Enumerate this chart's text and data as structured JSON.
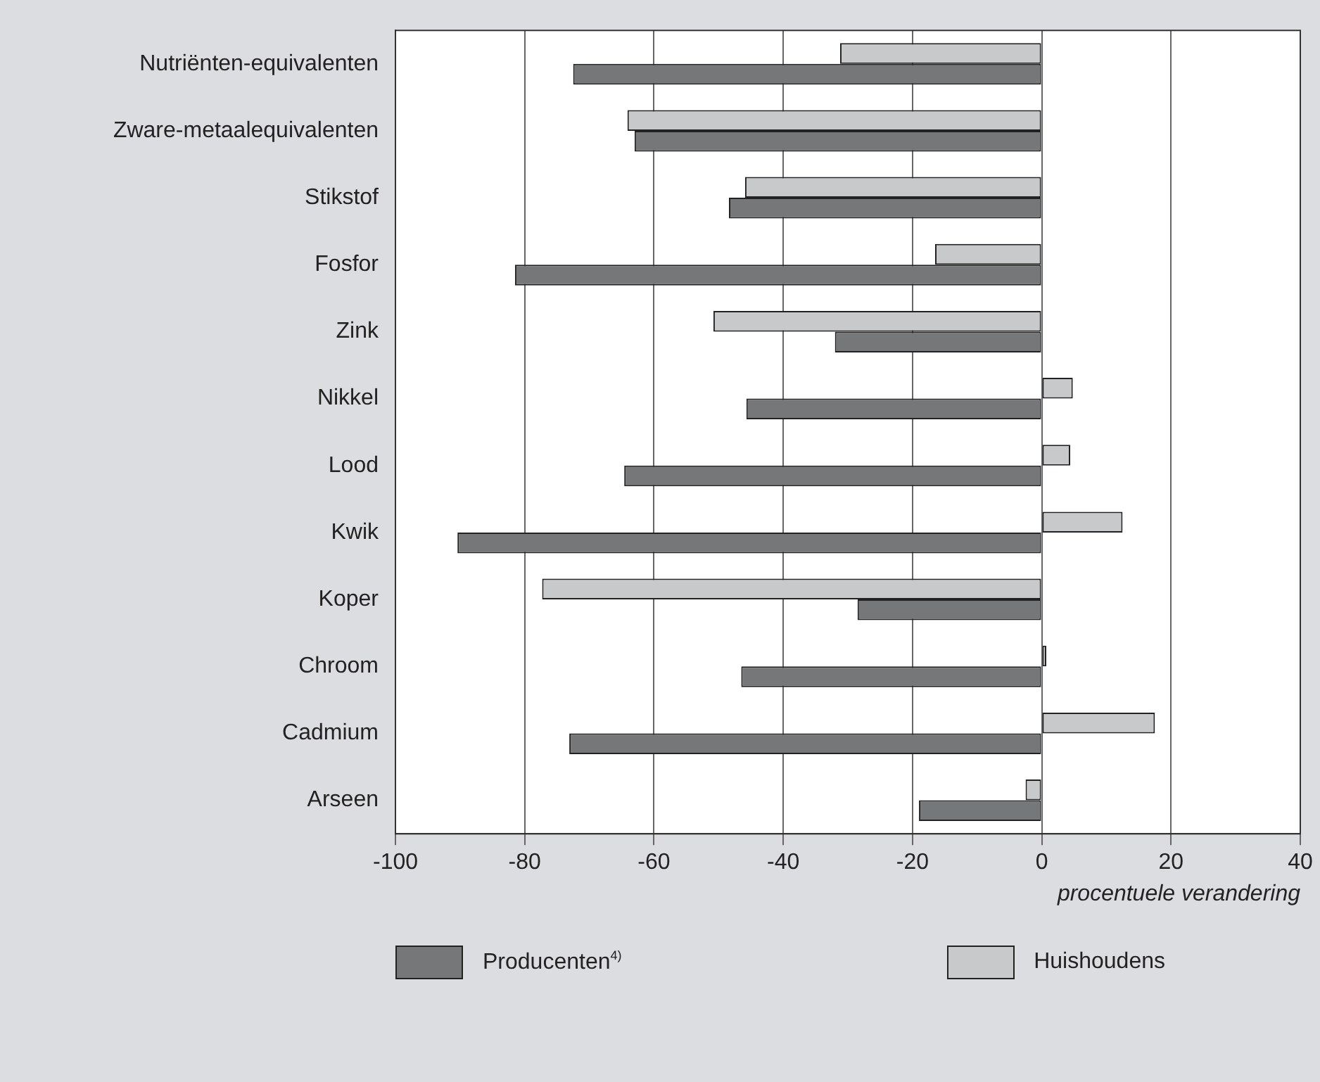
{
  "chart_data": {
    "type": "bar",
    "orientation": "horizontal",
    "xlabel": "procentuele verandering",
    "categories": [
      "Nutriënten-equivalenten",
      "Zware-metaalequivalenten",
      "Stikstof",
      "Fosfor",
      "Zink",
      "Nikkel",
      "Lood",
      "Kwik",
      "Koper",
      "Chroom",
      "Cadmium",
      "Arseen"
    ],
    "series": [
      {
        "name": "Producenten$^{4)}$",
        "color": "#767779",
        "values": [
          -72.5,
          -63,
          -48.4,
          -81.5,
          -32,
          -45.7,
          -64.6,
          -90.4,
          -28.5,
          -46.5,
          -73.1,
          -19
        ]
      },
      {
        "name": "Huishoudens",
        "color": "#c8c9cb",
        "values": [
          -31.2,
          -64.1,
          -45.9,
          -16.5,
          -50.8,
          4.8,
          4.4,
          12.5,
          -77.3,
          0.7,
          17.5,
          -2.5
        ]
      }
    ],
    "xlim": [
      -100,
      40
    ],
    "xticks": [
      -100,
      -80,
      -60,
      -40,
      -20,
      0,
      20,
      40
    ],
    "grid": "x",
    "legend": "bottom"
  }
}
